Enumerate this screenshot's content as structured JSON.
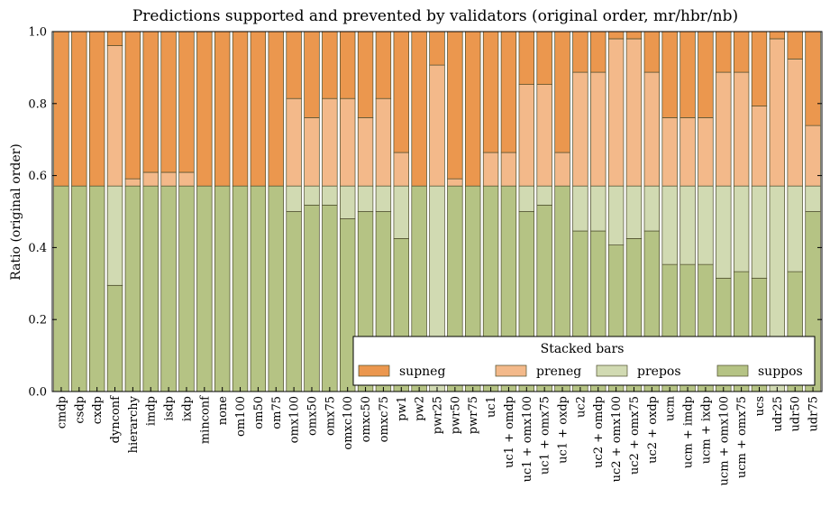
{
  "chart_data": {
    "type": "bar",
    "stacked": true,
    "title": "Predictions supported and prevented by validators (original order, mr/hbr/nb)",
    "xlabel": "",
    "ylabel": "Ratio (original order)",
    "ylim": [
      0,
      1.0
    ],
    "yticks": [
      "0.0",
      "0.2",
      "0.4",
      "0.6",
      "0.8",
      "1.0"
    ],
    "grid": false,
    "legend": {
      "title": "Stacked bars",
      "placement": "bottom-right"
    },
    "categories": [
      "cmdp",
      "csdp",
      "cxdp",
      "dynconf",
      "hierarchy",
      "imdp",
      "isdp",
      "ixdp",
      "minconf",
      "none",
      "om100",
      "om50",
      "om75",
      "omx100",
      "omx50",
      "omx75",
      "omxc100",
      "omxc50",
      "omxc75",
      "pw1",
      "pw2",
      "pwr25",
      "pwr50",
      "pwr75",
      "uc1",
      "uc1 + omdp",
      "uc1 + omx100",
      "uc1 + omx75",
      "uc1 + oxdp",
      "uc2",
      "uc2 + omdp",
      "uc2 + omx100",
      "uc2 + omx75",
      "uc2 + oxdp",
      "ucm",
      "ucm + imdp",
      "ucm + ixdp",
      "ucm + omx100",
      "ucm + omx75",
      "ucs",
      "udr25",
      "udr50",
      "udr75"
    ],
    "series": [
      {
        "name": "suppos",
        "color": "#b5c384",
        "values": [
          0.571,
          0.571,
          0.571,
          0.295,
          0.571,
          0.571,
          0.571,
          0.571,
          0.571,
          0.571,
          0.571,
          0.571,
          0.571,
          0.5,
          0.518,
          0.518,
          0.48,
          0.5,
          0.5,
          0.425,
          0.571,
          0,
          0.571,
          0.571,
          0.571,
          0.571,
          0.5,
          0.518,
          0.571,
          0.446,
          0.446,
          0.407,
          0.425,
          0.446,
          0.353,
          0.353,
          0.353,
          0.315,
          0.333,
          0.315,
          0,
          0.333,
          0.5
        ]
      },
      {
        "name": "prepos",
        "color": "#d1dab2",
        "values": [
          0,
          0,
          0,
          0.276,
          0,
          0,
          0,
          0,
          0,
          0,
          0,
          0,
          0,
          0.071,
          0.053,
          0.053,
          0.091,
          0.071,
          0.071,
          0.146,
          0,
          0.571,
          0,
          0,
          0,
          0,
          0.071,
          0.053,
          0,
          0.125,
          0.125,
          0.164,
          0.146,
          0.125,
          0.218,
          0.218,
          0.218,
          0.256,
          0.238,
          0.256,
          0.571,
          0.238,
          0.071
        ]
      },
      {
        "name": "preneg",
        "color": "#f3b98a",
        "values": [
          0,
          0,
          0,
          0.39,
          0.02,
          0.038,
          0.038,
          0.038,
          0,
          0,
          0,
          0,
          0,
          0.243,
          0.19,
          0.243,
          0.243,
          0.19,
          0.243,
          0.093,
          0,
          0.336,
          0.02,
          0,
          0.093,
          0.093,
          0.282,
          0.282,
          0.093,
          0.316,
          0.316,
          0.409,
          0.409,
          0.316,
          0.19,
          0.19,
          0.19,
          0.316,
          0.316,
          0.222,
          0.409,
          0.353,
          0.168
        ]
      },
      {
        "name": "supneg",
        "color": "#eb974e",
        "values": [
          0.429,
          0.429,
          0.429,
          0.039,
          0.409,
          0.391,
          0.391,
          0.391,
          0.429,
          0.429,
          0.429,
          0.429,
          0.429,
          0.186,
          0.239,
          0.186,
          0.186,
          0.239,
          0.186,
          0.336,
          0.429,
          0.093,
          0.409,
          0.429,
          0.336,
          0.336,
          0.147,
          0.147,
          0.336,
          0.113,
          0.113,
          0.02,
          0.02,
          0.113,
          0.239,
          0.239,
          0.239,
          0.113,
          0.113,
          0.207,
          0.02,
          0.076,
          0.261
        ]
      }
    ],
    "legend_order": [
      "supneg",
      "preneg",
      "prepos",
      "suppos"
    ]
  }
}
